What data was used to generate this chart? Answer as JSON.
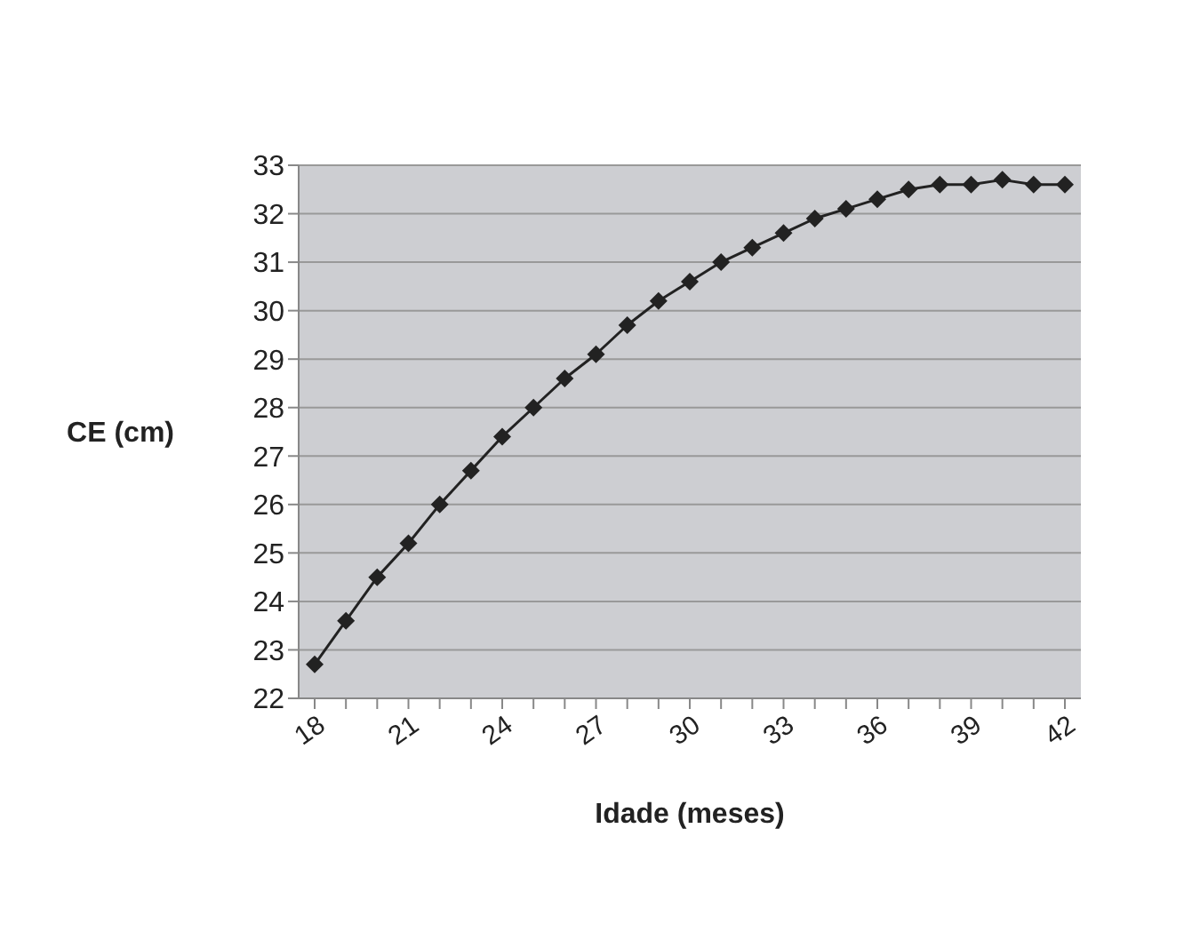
{
  "chart_data": {
    "type": "line",
    "xlabel": "Idade (meses)",
    "ylabel": "CE (cm)",
    "categories": [
      "18",
      null,
      null,
      "21",
      null,
      null,
      "24",
      null,
      null,
      "27",
      null,
      null,
      "30",
      null,
      null,
      "33",
      null,
      null,
      "36",
      null,
      null,
      "39",
      null,
      null,
      "42"
    ],
    "series": [
      {
        "color": "#222222",
        "values": [
          22.7,
          23.6,
          24.5,
          25.2,
          26.0,
          26.7,
          27.4,
          28.0,
          28.6,
          29.1,
          29.7,
          30.2,
          30.6,
          31.0,
          31.3,
          31.6,
          31.9,
          32.1,
          32.3,
          32.5,
          32.6,
          32.6,
          32.7,
          32.6,
          32.6
        ]
      }
    ],
    "ylim": [
      22,
      33
    ],
    "yticks": [
      22,
      23,
      24,
      25,
      26,
      27,
      28,
      29,
      30,
      31,
      32,
      33
    ],
    "grid": "y",
    "marker": "diamond",
    "legend": false
  }
}
